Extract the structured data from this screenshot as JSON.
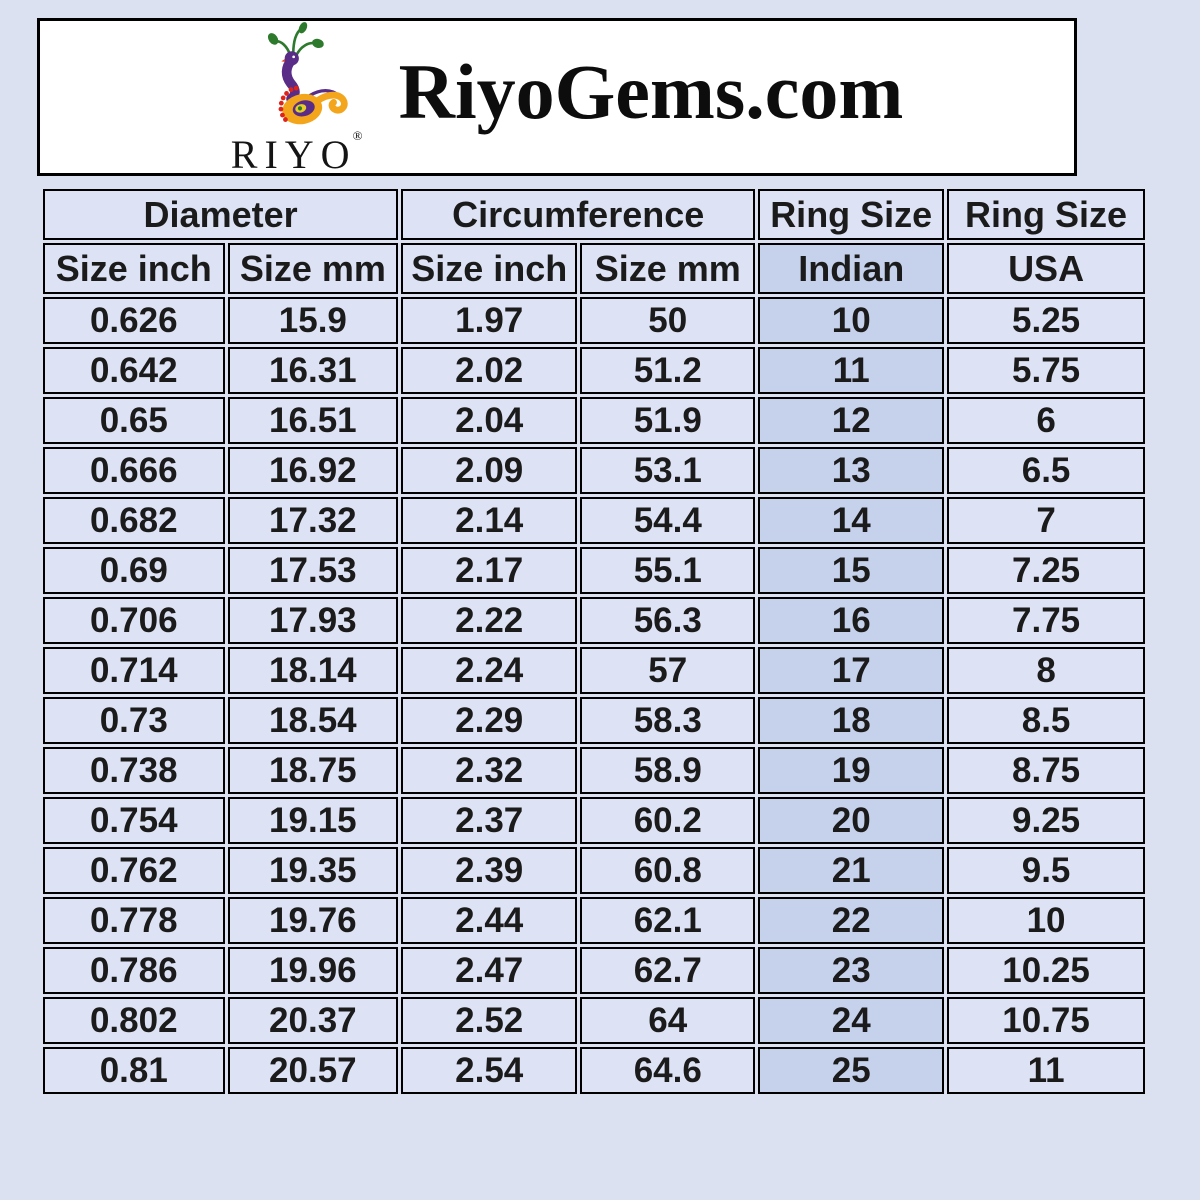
{
  "header": {
    "title": "RiyoGems.com",
    "logo": {
      "brand": "RIYO",
      "registered_mark": "®",
      "icon": "peacock-logo-icon"
    }
  },
  "chart_data": {
    "type": "table",
    "column_groups": [
      {
        "label": "Diameter",
        "colspan": 2
      },
      {
        "label": "Circumference",
        "colspan": 2
      },
      {
        "label": "Ring Size",
        "colspan": 1
      },
      {
        "label": "Ring Size",
        "colspan": 1
      }
    ],
    "columns": [
      "Size inch",
      "Size mm",
      "Size inch",
      "Size mm",
      "Indian",
      "USA"
    ],
    "highlight_column_index": 4,
    "highlight_column_label": "Indian",
    "rows": [
      [
        "0.626",
        "15.9",
        "1.97",
        "50",
        "10",
        "5.25"
      ],
      [
        "0.642",
        "16.31",
        "2.02",
        "51.2",
        "11",
        "5.75"
      ],
      [
        "0.65",
        "16.51",
        "2.04",
        "51.9",
        "12",
        "6"
      ],
      [
        "0.666",
        "16.92",
        "2.09",
        "53.1",
        "13",
        "6.5"
      ],
      [
        "0.682",
        "17.32",
        "2.14",
        "54.4",
        "14",
        "7"
      ],
      [
        "0.69",
        "17.53",
        "2.17",
        "55.1",
        "15",
        "7.25"
      ],
      [
        "0.706",
        "17.93",
        "2.22",
        "56.3",
        "16",
        "7.75"
      ],
      [
        "0.714",
        "18.14",
        "2.24",
        "57",
        "17",
        "8"
      ],
      [
        "0.73",
        "18.54",
        "2.29",
        "58.3",
        "18",
        "8.5"
      ],
      [
        "0.738",
        "18.75",
        "2.32",
        "58.9",
        "19",
        "8.75"
      ],
      [
        "0.754",
        "19.15",
        "2.37",
        "60.2",
        "20",
        "9.25"
      ],
      [
        "0.762",
        "19.35",
        "2.39",
        "60.8",
        "21",
        "9.5"
      ],
      [
        "0.778",
        "19.76",
        "2.44",
        "62.1",
        "22",
        "10"
      ],
      [
        "0.786",
        "19.96",
        "2.47",
        "62.7",
        "23",
        "10.25"
      ],
      [
        "0.802",
        "20.37",
        "2.52",
        "64",
        "24",
        "10.75"
      ],
      [
        "0.81",
        "20.57",
        "2.54",
        "64.6",
        "25",
        "11"
      ]
    ]
  },
  "colors": {
    "page_background": "#dce1f2",
    "cell_background": "#dde3f4",
    "highlight_background": "#c6d2ec",
    "border": "#000000",
    "header_box_background": "#ffffff",
    "logo_purple": "#582c87",
    "logo_green": "#2d7a2d",
    "logo_orange": "#f3a51c",
    "logo_red": "#e02318",
    "logo_beak": "#e8401c",
    "logo_eye_yellow": "#e8cd2a"
  }
}
